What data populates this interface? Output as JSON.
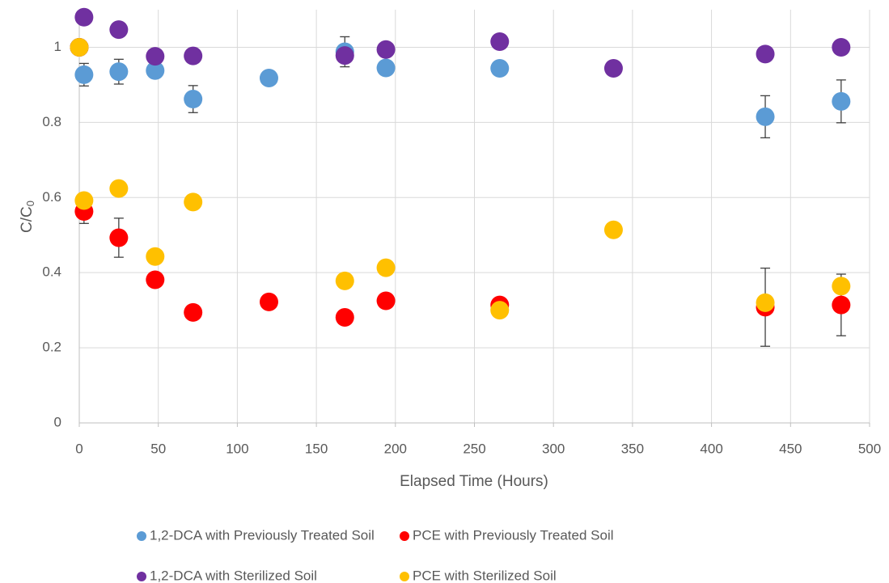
{
  "chart_data": {
    "type": "scatter",
    "x_label": "Elapsed Time (Hours)",
    "y_label": {
      "main": "C/C",
      "subscript": "0"
    },
    "xlim": [
      0,
      500
    ],
    "xticks": [
      0,
      50,
      100,
      150,
      200,
      250,
      300,
      350,
      400,
      450,
      500
    ],
    "ylim": [
      0,
      1.1
    ],
    "yticks": [
      0,
      0.2,
      0.4,
      0.6,
      0.8,
      1
    ],
    "grid": true,
    "legend": "bottom",
    "series": [
      {
        "name": "1,2-DCA with Previously Treated Soil",
        "color": "#5b9bd5",
        "x": [
          0,
          3,
          25,
          48,
          72,
          120,
          168,
          194,
          266,
          434,
          482
        ],
        "values": [
          1,
          0.927,
          0.935,
          0.938,
          0.862,
          0.918,
          0.988,
          0.945,
          0.944,
          0.815,
          0.856
        ],
        "errors": [
          null,
          0.03,
          0.033,
          null,
          0.036,
          null,
          0.04,
          null,
          null,
          0.056,
          0.057
        ]
      },
      {
        "name": "PCE with Previously Treated Soil",
        "color": "#ff0000",
        "x": [
          0,
          3,
          25,
          48,
          72,
          120,
          168,
          194,
          266,
          434,
          482
        ],
        "values": [
          1,
          0.563,
          0.493,
          0.381,
          0.294,
          0.322,
          0.281,
          0.325,
          0.314,
          0.308,
          0.314
        ],
        "errors": [
          null,
          0.032,
          0.052,
          null,
          null,
          null,
          null,
          null,
          null,
          0.104,
          0.082
        ]
      },
      {
        "name": "1,2-DCA with Sterilized Soil",
        "color": "#7030a0",
        "x": [
          0,
          3,
          25,
          48,
          72,
          168,
          194,
          266,
          338,
          434,
          482
        ],
        "values": [
          1,
          1.08,
          1.047,
          0.976,
          0.977,
          0.978,
          0.994,
          1.015,
          0.944,
          0.982,
          1
        ],
        "errors": [
          null,
          null,
          null,
          null,
          null,
          null,
          null,
          null,
          null,
          null,
          null
        ]
      },
      {
        "name": "PCE with Sterilized Soil",
        "color": "#ffc000",
        "x": [
          0,
          3,
          25,
          48,
          72,
          168,
          194,
          266,
          338,
          434,
          482
        ],
        "values": [
          1,
          0.592,
          0.624,
          0.443,
          0.588,
          0.378,
          0.413,
          0.3,
          0.514,
          0.32,
          0.364
        ],
        "errors": [
          null,
          null,
          null,
          null,
          null,
          null,
          null,
          null,
          null,
          null,
          null
        ]
      }
    ]
  }
}
